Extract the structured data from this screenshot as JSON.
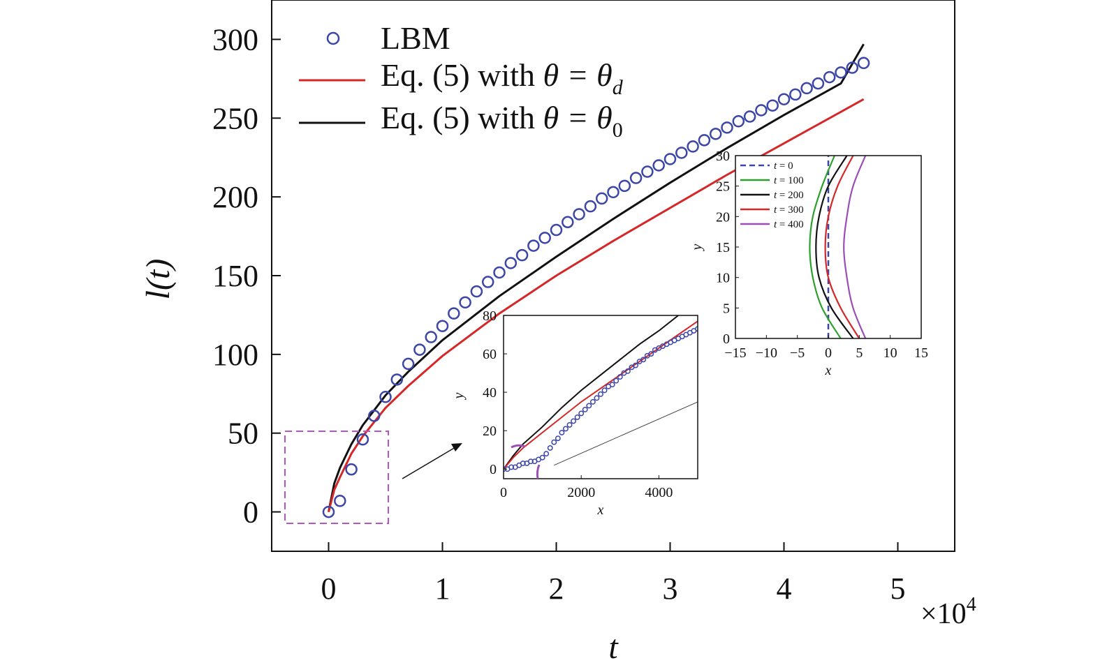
{
  "chart_data": [
    {
      "type": "line",
      "xlabel": "t",
      "ylabel": "l(t)",
      "x_multiplier": "×10",
      "x_multiplier_exp": "4",
      "xlim": [
        -0.5,
        5.5
      ],
      "ylim": [
        -25,
        325
      ],
      "xticks": [
        0,
        1,
        2,
        3,
        4,
        5
      ],
      "yticks": [
        0,
        50,
        100,
        150,
        200,
        250,
        300
      ],
      "grid": false,
      "legend_position": "top-left",
      "series": [
        {
          "name": "LBM",
          "style": "markers",
          "color": "#3b46a8",
          "x": [
            0,
            0.1,
            0.2,
            0.3,
            0.4,
            0.5,
            0.6,
            0.7,
            0.8,
            0.9,
            1.0,
            1.1,
            1.2,
            1.3,
            1.4,
            1.5,
            1.6,
            1.7,
            1.8,
            1.9,
            2.0,
            2.1,
            2.2,
            2.3,
            2.4,
            2.5,
            2.6,
            2.7,
            2.8,
            2.9,
            3.0,
            3.1,
            3.2,
            3.3,
            3.4,
            3.5,
            3.6,
            3.7,
            3.8,
            3.9,
            4.0,
            4.1,
            4.2,
            4.3,
            4.4,
            4.5,
            4.6,
            4.7
          ],
          "y": [
            0,
            7,
            27,
            46,
            61,
            73,
            84,
            94,
            103,
            111,
            118,
            126,
            133,
            140,
            146,
            152,
            158,
            163,
            169,
            174,
            179,
            184,
            189,
            194,
            199,
            203,
            207,
            212,
            216,
            220,
            224,
            228,
            232,
            236,
            240,
            244,
            248,
            251,
            255,
            258,
            262,
            265,
            269,
            272,
            276,
            279,
            282,
            285
          ]
        },
        {
          "name_prefix": "Eq. (5) with ",
          "name_symbol": "θ = θ",
          "name_sub": "d",
          "style": "line",
          "color": "#d62728",
          "x": [
            0,
            0.05,
            0.1,
            0.2,
            0.3,
            0.5,
            0.7,
            1.0,
            1.5,
            2.0,
            2.5,
            3.0,
            3.5,
            4.0,
            4.5,
            4.7
          ],
          "y": [
            0,
            14,
            22,
            37,
            48,
            66,
            80,
            99,
            126,
            150,
            172,
            193,
            214,
            234,
            254,
            262
          ]
        },
        {
          "name_prefix": "Eq. (5) with ",
          "name_symbol": "θ = θ",
          "name_sub": "0",
          "style": "line",
          "color": "#111111",
          "x": [
            0,
            0.05,
            0.1,
            0.2,
            0.3,
            0.5,
            0.7,
            1.0,
            1.5,
            2.0,
            2.5,
            3.0,
            3.5,
            4.0,
            4.5,
            4.7
          ],
          "y": [
            0,
            18,
            28,
            43,
            55,
            74,
            89,
            109,
            137,
            162,
            186,
            209,
            231,
            252,
            272,
            297
          ]
        }
      ]
    },
    {
      "type": "line",
      "xlabel": "x",
      "ylabel": "y",
      "xlim": [
        0,
        5000
      ],
      "ylim": [
        -5,
        80
      ],
      "xticks": [
        0,
        2000,
        4000
      ],
      "yticks": [
        0,
        20,
        40,
        60,
        80
      ],
      "series": [
        {
          "style": "line",
          "color": "#111111",
          "x": [
            0,
            250,
            500,
            1000,
            1500,
            2000,
            2500,
            3000,
            3500,
            4000,
            4500
          ],
          "y": [
            0,
            7,
            13,
            22,
            32,
            41,
            49,
            57,
            65,
            72,
            80
          ]
        },
        {
          "style": "line",
          "color": "#d62728",
          "x": [
            0,
            250,
            500,
            1000,
            1500,
            2000,
            2500,
            3000,
            3500,
            4000,
            4500,
            5000
          ],
          "y": [
            0,
            6,
            11,
            19,
            27,
            35,
            42,
            49,
            56,
            63,
            70,
            77
          ]
        },
        {
          "style": "markers",
          "color": "#3b46a8",
          "x": [
            0,
            100,
            200,
            300,
            400,
            500,
            600,
            700,
            800,
            900,
            1000,
            1100,
            1200,
            1300,
            1400,
            1500,
            1600,
            1700,
            1800,
            1900,
            2000,
            2100,
            2200,
            2300,
            2400,
            2500,
            2600,
            2700,
            2800,
            2900,
            3000,
            3100,
            3200,
            3300,
            3400,
            3500,
            3600,
            3700,
            3800,
            3900,
            4000,
            4100,
            4200,
            4300,
            4400,
            4500,
            4600,
            4700,
            4800,
            4900,
            5000
          ],
          "y": [
            0,
            0,
            1,
            1,
            2,
            3,
            3,
            4,
            4,
            5,
            6,
            8,
            11,
            14,
            16,
            19,
            21,
            23,
            25,
            27,
            29,
            31,
            33,
            35,
            37,
            39,
            41,
            43,
            44,
            46,
            48,
            50,
            51,
            53,
            54,
            56,
            57,
            59,
            60,
            62,
            63,
            64,
            65,
            66,
            67,
            68,
            69,
            70,
            71,
            72,
            73
          ]
        },
        {
          "style": "thin-line",
          "color": "#444444",
          "x": [
            1300,
            5000
          ],
          "y": [
            2,
            35
          ]
        }
      ]
    },
    {
      "type": "line",
      "xlabel": "x",
      "ylabel": "y",
      "xlim": [
        -15,
        15
      ],
      "ylim": [
        0,
        30
      ],
      "xticks": [
        -15,
        -10,
        -5,
        0,
        5,
        10,
        15
      ],
      "yticks": [
        0,
        5,
        10,
        15,
        20,
        25,
        30
      ],
      "legend_position": "top-left",
      "series": [
        {
          "name": "t = 0",
          "color": "#3b46a8",
          "dashed": true,
          "points": [
            [
              0,
              0
            ],
            [
              0,
              30
            ]
          ]
        },
        {
          "name": "t = 100",
          "color": "#2ca02c",
          "points": [
            [
              2,
              0
            ],
            [
              -1,
              5
            ],
            [
              -2.5,
              10
            ],
            [
              -3,
              15
            ],
            [
              -2.5,
              20
            ],
            [
              -1,
              25
            ],
            [
              1,
              30
            ]
          ]
        },
        {
          "name": "t = 200",
          "color": "#111111",
          "points": [
            [
              4,
              0
            ],
            [
              0.5,
              5
            ],
            [
              -1.5,
              10
            ],
            [
              -2,
              15
            ],
            [
              -1.5,
              20
            ],
            [
              0,
              25
            ],
            [
              3,
              30
            ]
          ]
        },
        {
          "name": "t = 300",
          "color": "#d62728",
          "points": [
            [
              5,
              0
            ],
            [
              2,
              5
            ],
            [
              0,
              10
            ],
            [
              -0.5,
              15
            ],
            [
              0,
              20
            ],
            [
              1.5,
              25
            ],
            [
              4,
              30
            ]
          ]
        },
        {
          "name": "t = 400",
          "color": "#9b4fb5",
          "points": [
            [
              6,
              0
            ],
            [
              4,
              5
            ],
            [
              3,
              10
            ],
            [
              2.5,
              15
            ],
            [
              3,
              20
            ],
            [
              4,
              25
            ],
            [
              6,
              30
            ]
          ]
        }
      ]
    }
  ]
}
